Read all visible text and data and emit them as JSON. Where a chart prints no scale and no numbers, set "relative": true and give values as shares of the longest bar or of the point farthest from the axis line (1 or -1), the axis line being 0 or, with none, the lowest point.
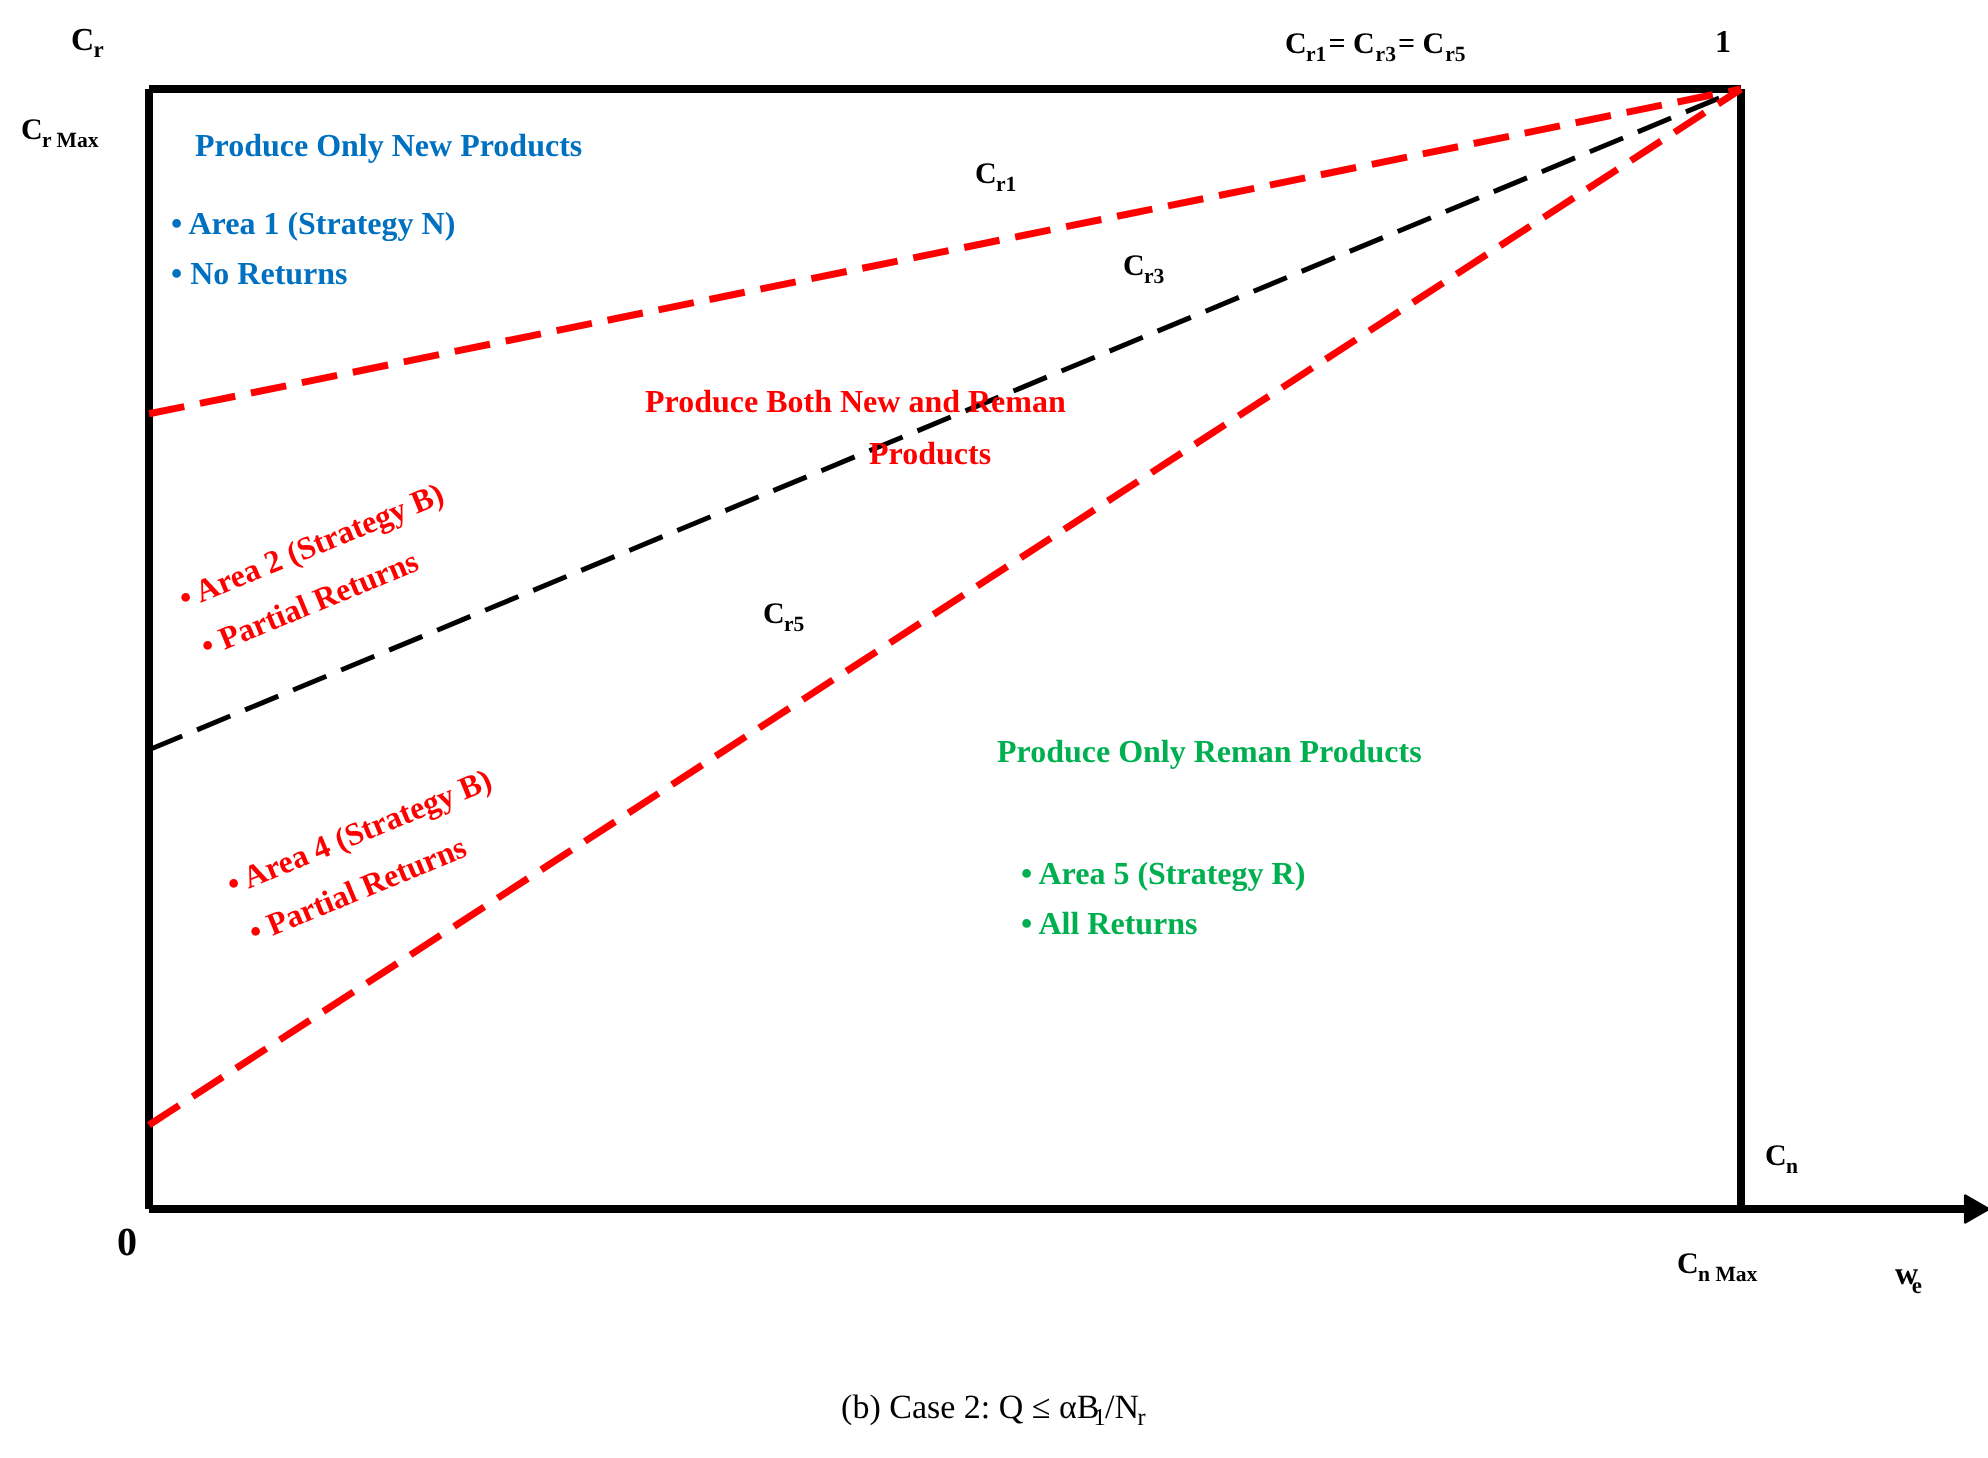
{
  "chart_data": {
    "type": "line",
    "relative": true,
    "line_style": "dashed",
    "marker": "none",
    "xlabel": "w$_{e}$",
    "ylabel": "C$_{r}$",
    "categories": [
      null,
      null
    ],
    "series": [
      {
        "name": "C$_{r1}$",
        "color": "#ff0000",
        "values": [
          0.71,
          1
        ]
      },
      {
        "name": "C$_{r3}$",
        "color": "#000000",
        "values": [
          0.41,
          1
        ]
      },
      {
        "name": "C$_{r5}$",
        "color": "#ff0000",
        "values": [
          0.075,
          1
        ]
      }
    ],
    "annotations": [
      "Produce Only New Products",
      "• Area 1 (Strategy N)",
      "• No Returns",
      "Produce Both New and Reman",
      "Products",
      "• Area 2 (Strategy B)",
      "• Partial Returns",
      "• Area 4 (Strategy B)",
      "• Partial Returns",
      "Produce Only Reman Products",
      "• Area 5 (Strategy R)",
      "• All Returns",
      "C$_{r Max}$",
      "0",
      "1",
      "C$_{r1}$= C$_{r3}$= C$_{r5}$",
      "C$_{n}$",
      "C$_{n Max}$",
      "(b) Case 2: Q ≤ αB$_{1}$/N$_{r}$"
    ]
  }
}
